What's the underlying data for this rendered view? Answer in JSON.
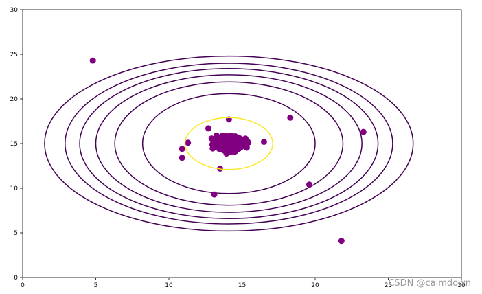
{
  "chart_data": {
    "type": "scatter",
    "title": "",
    "xlabel": "",
    "ylabel": "",
    "xlim": [
      0,
      30
    ],
    "ylim": [
      0,
      30
    ],
    "xticks": [
      "0",
      "5",
      "10",
      "15",
      "20",
      "25",
      "30"
    ],
    "yticks": [
      "0",
      "5",
      "10",
      "15",
      "20",
      "25",
      "30"
    ],
    "grid": false,
    "legend": "none",
    "point_color": "#800080",
    "contour_color": "#440154",
    "threshold_color": "#fde725",
    "center": [
      14.1,
      15.0
    ],
    "contour_radii": [
      [
        5.9,
        5.6
      ],
      [
        7.8,
        6.9
      ],
      [
        9.1,
        7.7
      ],
      [
        10.2,
        8.4
      ],
      [
        11.2,
        9.0
      ],
      [
        12.6,
        9.8
      ]
    ],
    "threshold_radii": [
      3.0,
      2.9
    ],
    "outliers": [
      [
        4.8,
        24.3
      ],
      [
        18.3,
        17.9
      ],
      [
        23.3,
        16.3
      ],
      [
        19.6,
        10.4
      ],
      [
        21.8,
        4.1
      ],
      [
        13.1,
        9.3
      ],
      [
        10.9,
        14.4
      ],
      [
        10.9,
        13.4
      ],
      [
        11.3,
        15.1
      ],
      [
        12.7,
        16.7
      ],
      [
        13.5,
        12.2
      ],
      [
        16.5,
        15.2
      ],
      [
        14.1,
        17.7
      ]
    ]
  },
  "watermark": "CSDN @calmdown"
}
